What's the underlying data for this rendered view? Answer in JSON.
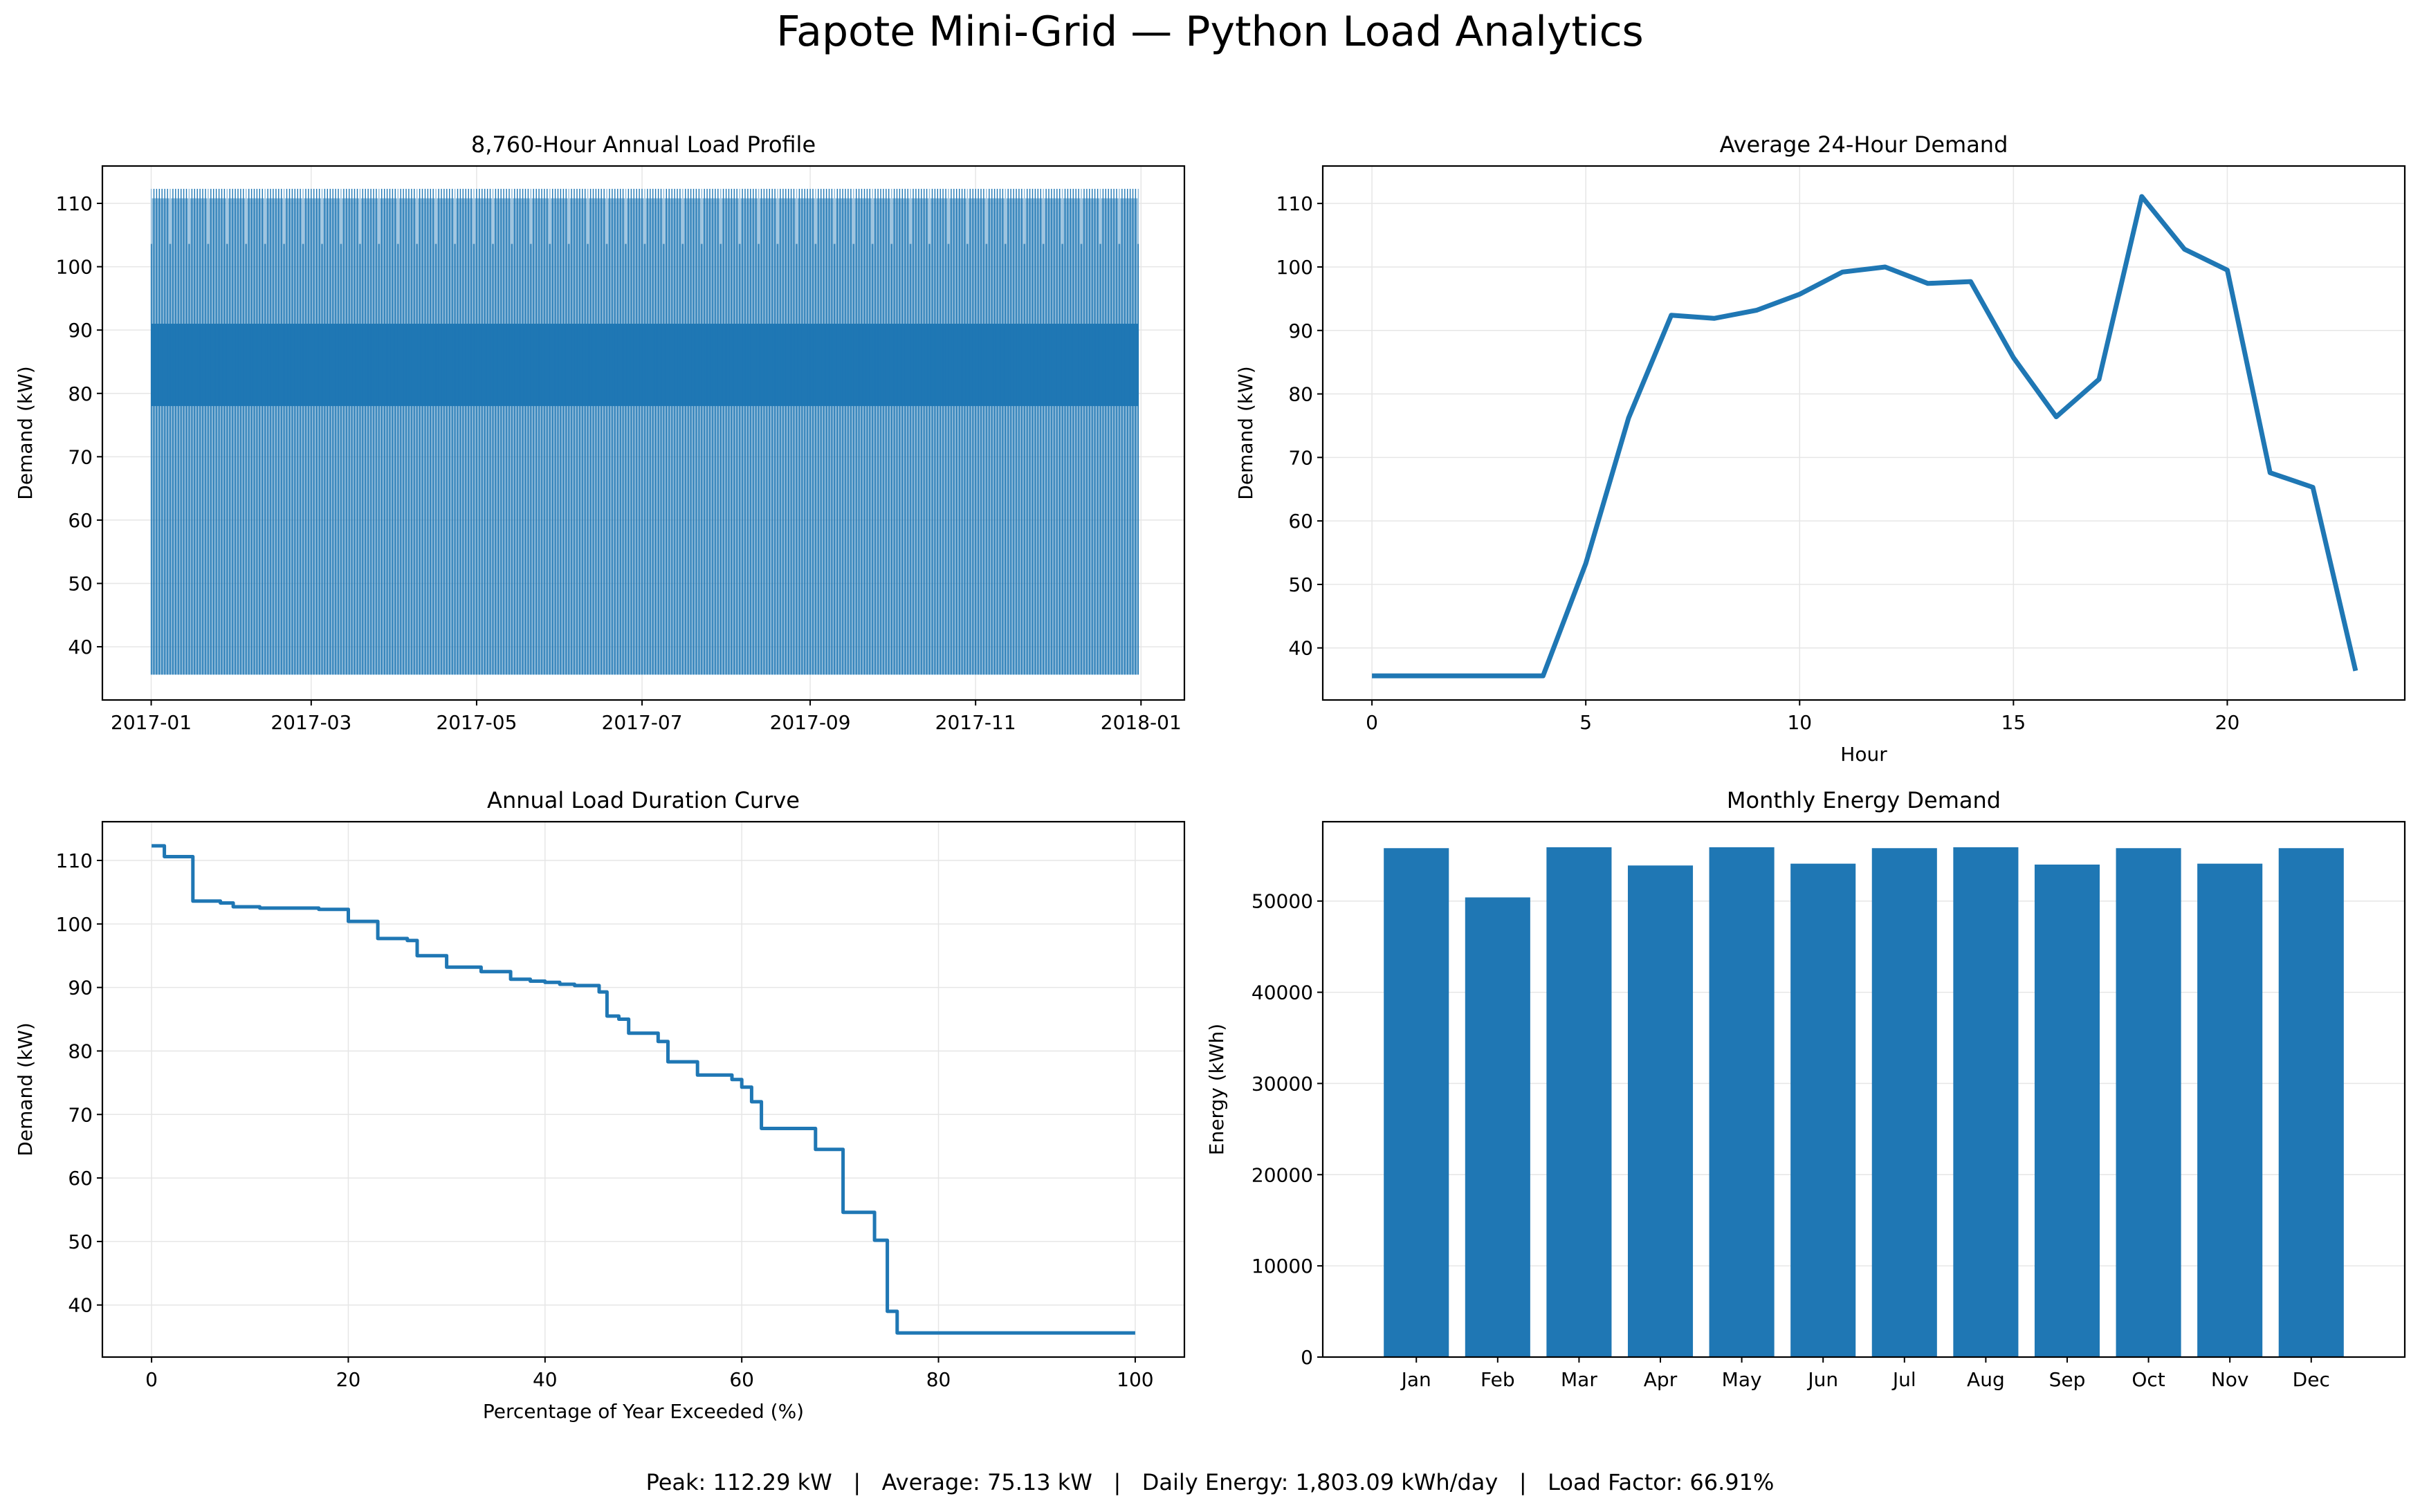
{
  "figure_title": "Fapote Mini-Grid — Python Load Analytics",
  "footer": "Peak: 112.29 kW   |   Average: 75.13 kW   |   Daily Energy: 1,803.09 kWh/day   |   Load Factor: 66.91%",
  "colors": {
    "series": "#1f77b4",
    "grid": "#e6e6e6",
    "axis": "#000000"
  },
  "chart_data": [
    {
      "id": "annual-profile",
      "type": "line",
      "title": "8,760-Hour Annual Load Profile",
      "xlabel": "",
      "ylabel": "Demand (kW)",
      "x_ticks": [
        "2017-01",
        "2017-03",
        "2017-05",
        "2017-07",
        "2017-09",
        "2017-11",
        "2018-01"
      ],
      "y_ticks": [
        40,
        50,
        60,
        70,
        80,
        90,
        100,
        110
      ],
      "xlim": [
        "2016-12-14",
        "2018-01-17"
      ],
      "ylim": [
        31.6,
        115.9
      ],
      "x_range": [
        "2017-01-01",
        "2017-12-31"
      ],
      "y_range": [
        35.6,
        112.3
      ],
      "description_values": {
        "min_kW": 35.6,
        "max_kW": 112.3,
        "typical_band_kW": [
          78,
          91
        ],
        "secondary_peak_kW": 103.6
      },
      "grid": true
    },
    {
      "id": "daily-profile",
      "type": "line",
      "title": "Average 24-Hour Demand",
      "xlabel": "Hour",
      "ylabel": "Demand (kW)",
      "x": [
        0,
        1,
        2,
        3,
        4,
        5,
        6,
        7,
        8,
        9,
        10,
        11,
        12,
        13,
        14,
        15,
        16,
        17,
        18,
        19,
        20,
        21,
        22,
        23
      ],
      "y": [
        35.6,
        35.6,
        35.6,
        35.6,
        35.6,
        53.3,
        76.2,
        92.4,
        91.9,
        93.2,
        95.7,
        99.2,
        100.0,
        97.4,
        97.7,
        85.7,
        76.4,
        82.3,
        111.1,
        102.8,
        99.5,
        67.6,
        65.3,
        36.4
      ],
      "x_ticks": [
        0,
        5,
        10,
        15,
        20
      ],
      "y_ticks": [
        40,
        50,
        60,
        70,
        80,
        90,
        100,
        110
      ],
      "xlim": [
        -1.15,
        24.15
      ],
      "ylim": [
        31.8,
        115.9
      ],
      "grid": true
    },
    {
      "id": "duration-curve",
      "type": "line",
      "title": "Annual Load Duration Curve",
      "xlabel": "Percentage of Year Exceeded (%)",
      "ylabel": "Demand (kW)",
      "x": [
        0,
        1.3,
        1.3,
        4.2,
        4.2,
        7.0,
        7.0,
        8.3,
        8.3,
        11.0,
        11.0,
        17.0,
        17.0,
        20.0,
        20.0,
        23.0,
        23.0,
        26.0,
        26.0,
        27.0,
        27.0,
        30.0,
        30.0,
        33.5,
        33.5,
        36.5,
        36.5,
        38.5,
        38.5,
        40.0,
        40.0,
        41.5,
        41.5,
        43.0,
        43.0,
        45.5,
        45.5,
        46.3,
        46.3,
        47.5,
        47.5,
        48.5,
        48.5,
        51.5,
        51.5,
        52.5,
        52.5,
        55.5,
        55.5,
        59.0,
        59.0,
        60.0,
        60.0,
        61.0,
        61.0,
        62.0,
        62.0,
        67.5,
        67.5,
        70.3,
        70.3,
        73.5,
        73.5,
        74.8,
        74.8,
        75.8,
        75.8,
        100.0
      ],
      "y": [
        112.3,
        112.3,
        110.6,
        110.6,
        103.6,
        103.6,
        103.3,
        103.3,
        102.7,
        102.7,
        102.5,
        102.5,
        102.3,
        102.3,
        100.4,
        100.4,
        97.7,
        97.7,
        97.4,
        97.4,
        95.0,
        95.0,
        93.2,
        93.2,
        92.5,
        92.5,
        91.3,
        91.3,
        91.0,
        91.0,
        90.8,
        90.8,
        90.5,
        90.5,
        90.3,
        90.3,
        89.3,
        89.3,
        85.5,
        85.5,
        85.0,
        85.0,
        82.8,
        82.8,
        81.5,
        81.5,
        78.3,
        78.3,
        76.2,
        76.2,
        75.5,
        75.5,
        74.3,
        74.3,
        72.0,
        72.0,
        67.8,
        67.8,
        64.5,
        64.5,
        54.6,
        54.6,
        50.2,
        50.2,
        39.0,
        39.0,
        35.6,
        35.6
      ],
      "x_ticks": [
        0,
        20,
        40,
        60,
        80,
        100
      ],
      "y_ticks": [
        40,
        50,
        60,
        70,
        80,
        90,
        100,
        110
      ],
      "xlim": [
        -5,
        105
      ],
      "ylim": [
        31.8,
        116.1
      ],
      "grid": true
    },
    {
      "id": "monthly-energy",
      "type": "bar",
      "title": "Monthly Energy Demand",
      "xlabel": "",
      "ylabel": "Energy (kWh)",
      "categories": [
        "Jan",
        "Feb",
        "Mar",
        "Apr",
        "May",
        "Jun",
        "Jul",
        "Aug",
        "Sep",
        "Oct",
        "Nov",
        "Dec"
      ],
      "values": [
        55800,
        50400,
        55900,
        53900,
        55900,
        54100,
        55800,
        55900,
        54000,
        55800,
        54100,
        55800
      ],
      "y_ticks": [
        0,
        10000,
        20000,
        30000,
        40000,
        50000
      ],
      "ylim": [
        0,
        58700
      ],
      "grid": true
    }
  ]
}
